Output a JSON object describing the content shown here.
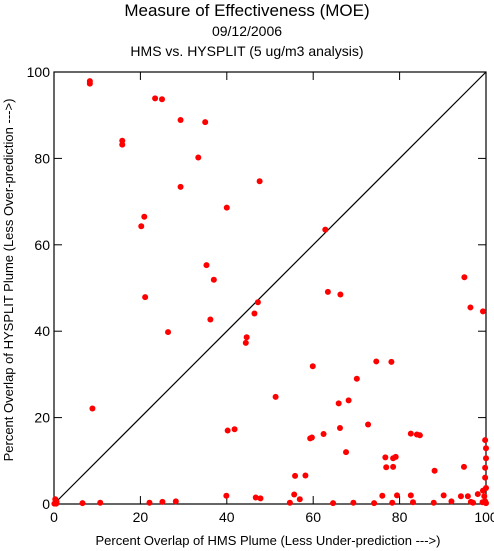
{
  "chart_data": {
    "type": "scatter",
    "title": "Measure of Effectiveness (MOE)",
    "subtitle_date": "09/12/2006",
    "subtitle_analysis": "HMS vs. HYSPLIT  (5 ug/m3 analysis)",
    "xlabel": "Percent Overlap of HMS Plume (Less Under-prediction --->)",
    "ylabel": "Percent Overlap of HYSPLIT Plume (Less Over-prediction --->)",
    "xlim": [
      0,
      100
    ],
    "ylim": [
      0,
      100
    ],
    "x_ticks": [
      0,
      20,
      40,
      60,
      80,
      100
    ],
    "y_ticks": [
      0,
      20,
      40,
      60,
      80,
      100
    ],
    "grid": false,
    "reference_line": "diagonal",
    "colors": {
      "points": "#ff0000",
      "axes": "#000000",
      "reference_line": "#000000"
    },
    "series": [
      {
        "points": [
          [
            8.3,
            97.9
          ],
          [
            8.3,
            97.3
          ],
          [
            23.4,
            93.9
          ],
          [
            25.0,
            93.7
          ],
          [
            29.3,
            88.9
          ],
          [
            35.0,
            88.4
          ],
          [
            15.8,
            84.1
          ],
          [
            15.8,
            83.2
          ],
          [
            33.4,
            80.2
          ],
          [
            29.3,
            73.4
          ],
          [
            47.6,
            74.7
          ],
          [
            40.0,
            68.6
          ],
          [
            20.9,
            66.5
          ],
          [
            20.2,
            64.3
          ],
          [
            62.8,
            63.5
          ],
          [
            35.3,
            55.3
          ],
          [
            37.0,
            51.9
          ],
          [
            63.4,
            49.1
          ],
          [
            66.3,
            48.5
          ],
          [
            95.0,
            52.5
          ],
          [
            96.4,
            45.5
          ],
          [
            99.3,
            44.6
          ],
          [
            21.1,
            47.9
          ],
          [
            47.2,
            46.7
          ],
          [
            46.4,
            44.1
          ],
          [
            36.2,
            42.7
          ],
          [
            26.4,
            39.8
          ],
          [
            44.6,
            38.6
          ],
          [
            44.4,
            37.3
          ],
          [
            59.9,
            31.9
          ],
          [
            74.6,
            33.0
          ],
          [
            78.1,
            32.9
          ],
          [
            70.1,
            29.0
          ],
          [
            51.3,
            24.8
          ],
          [
            68.2,
            24.0
          ],
          [
            65.9,
            23.3
          ],
          [
            72.7,
            18.4
          ],
          [
            66.2,
            17.6
          ],
          [
            40.2,
            17.0
          ],
          [
            41.8,
            17.3
          ],
          [
            62.4,
            16.2
          ],
          [
            59.3,
            15.2
          ],
          [
            59.7,
            15.4
          ],
          [
            82.6,
            16.3
          ],
          [
            84.0,
            16.1
          ],
          [
            84.7,
            15.9
          ],
          [
            8.9,
            22.1
          ],
          [
            67.6,
            12.0
          ],
          [
            76.7,
            10.8
          ],
          [
            78.5,
            10.6
          ],
          [
            79.1,
            10.9
          ],
          [
            76.9,
            8.5
          ],
          [
            78.5,
            8.6
          ],
          [
            88.1,
            7.7
          ],
          [
            94.9,
            8.6
          ],
          [
            58.2,
            6.6
          ],
          [
            55.8,
            6.5
          ],
          [
            99.8,
            14.8
          ],
          [
            100.0,
            12.9
          ],
          [
            100.0,
            10.6
          ],
          [
            99.8,
            8.4
          ],
          [
            99.8,
            6.1
          ],
          [
            0.3,
            1.1
          ],
          [
            0.6,
            0.5
          ],
          [
            0.1,
            0.1
          ],
          [
            0.5,
            0.1
          ],
          [
            6.6,
            0.2
          ],
          [
            10.7,
            0.3
          ],
          [
            22.1,
            0.3
          ],
          [
            25.1,
            0.5
          ],
          [
            28.2,
            0.6
          ],
          [
            39.9,
            1.9
          ],
          [
            46.7,
            1.5
          ],
          [
            47.8,
            1.3
          ],
          [
            54.6,
            0.3
          ],
          [
            55.6,
            2.2
          ],
          [
            56.9,
            1.1
          ],
          [
            64.6,
            0.2
          ],
          [
            69.3,
            0.3
          ],
          [
            74.1,
            0.2
          ],
          [
            76.0,
            1.9
          ],
          [
            78.3,
            0.3
          ],
          [
            79.4,
            2.0
          ],
          [
            82.6,
            2.0
          ],
          [
            83.1,
            0.4
          ],
          [
            87.9,
            0.3
          ],
          [
            90.2,
            2.0
          ],
          [
            92.0,
            0.6
          ],
          [
            94.2,
            1.8
          ],
          [
            95.8,
            1.8
          ],
          [
            97.0,
            0.3
          ],
          [
            98.1,
            2.3
          ],
          [
            99.3,
            3.1
          ],
          [
            100.0,
            3.7
          ],
          [
            99.6,
            1.8
          ],
          [
            99.8,
            0.6
          ],
          [
            100.0,
            0.2
          ],
          [
            99.2,
            0.4
          ],
          [
            96.5,
            0.5
          ]
        ]
      }
    ]
  }
}
